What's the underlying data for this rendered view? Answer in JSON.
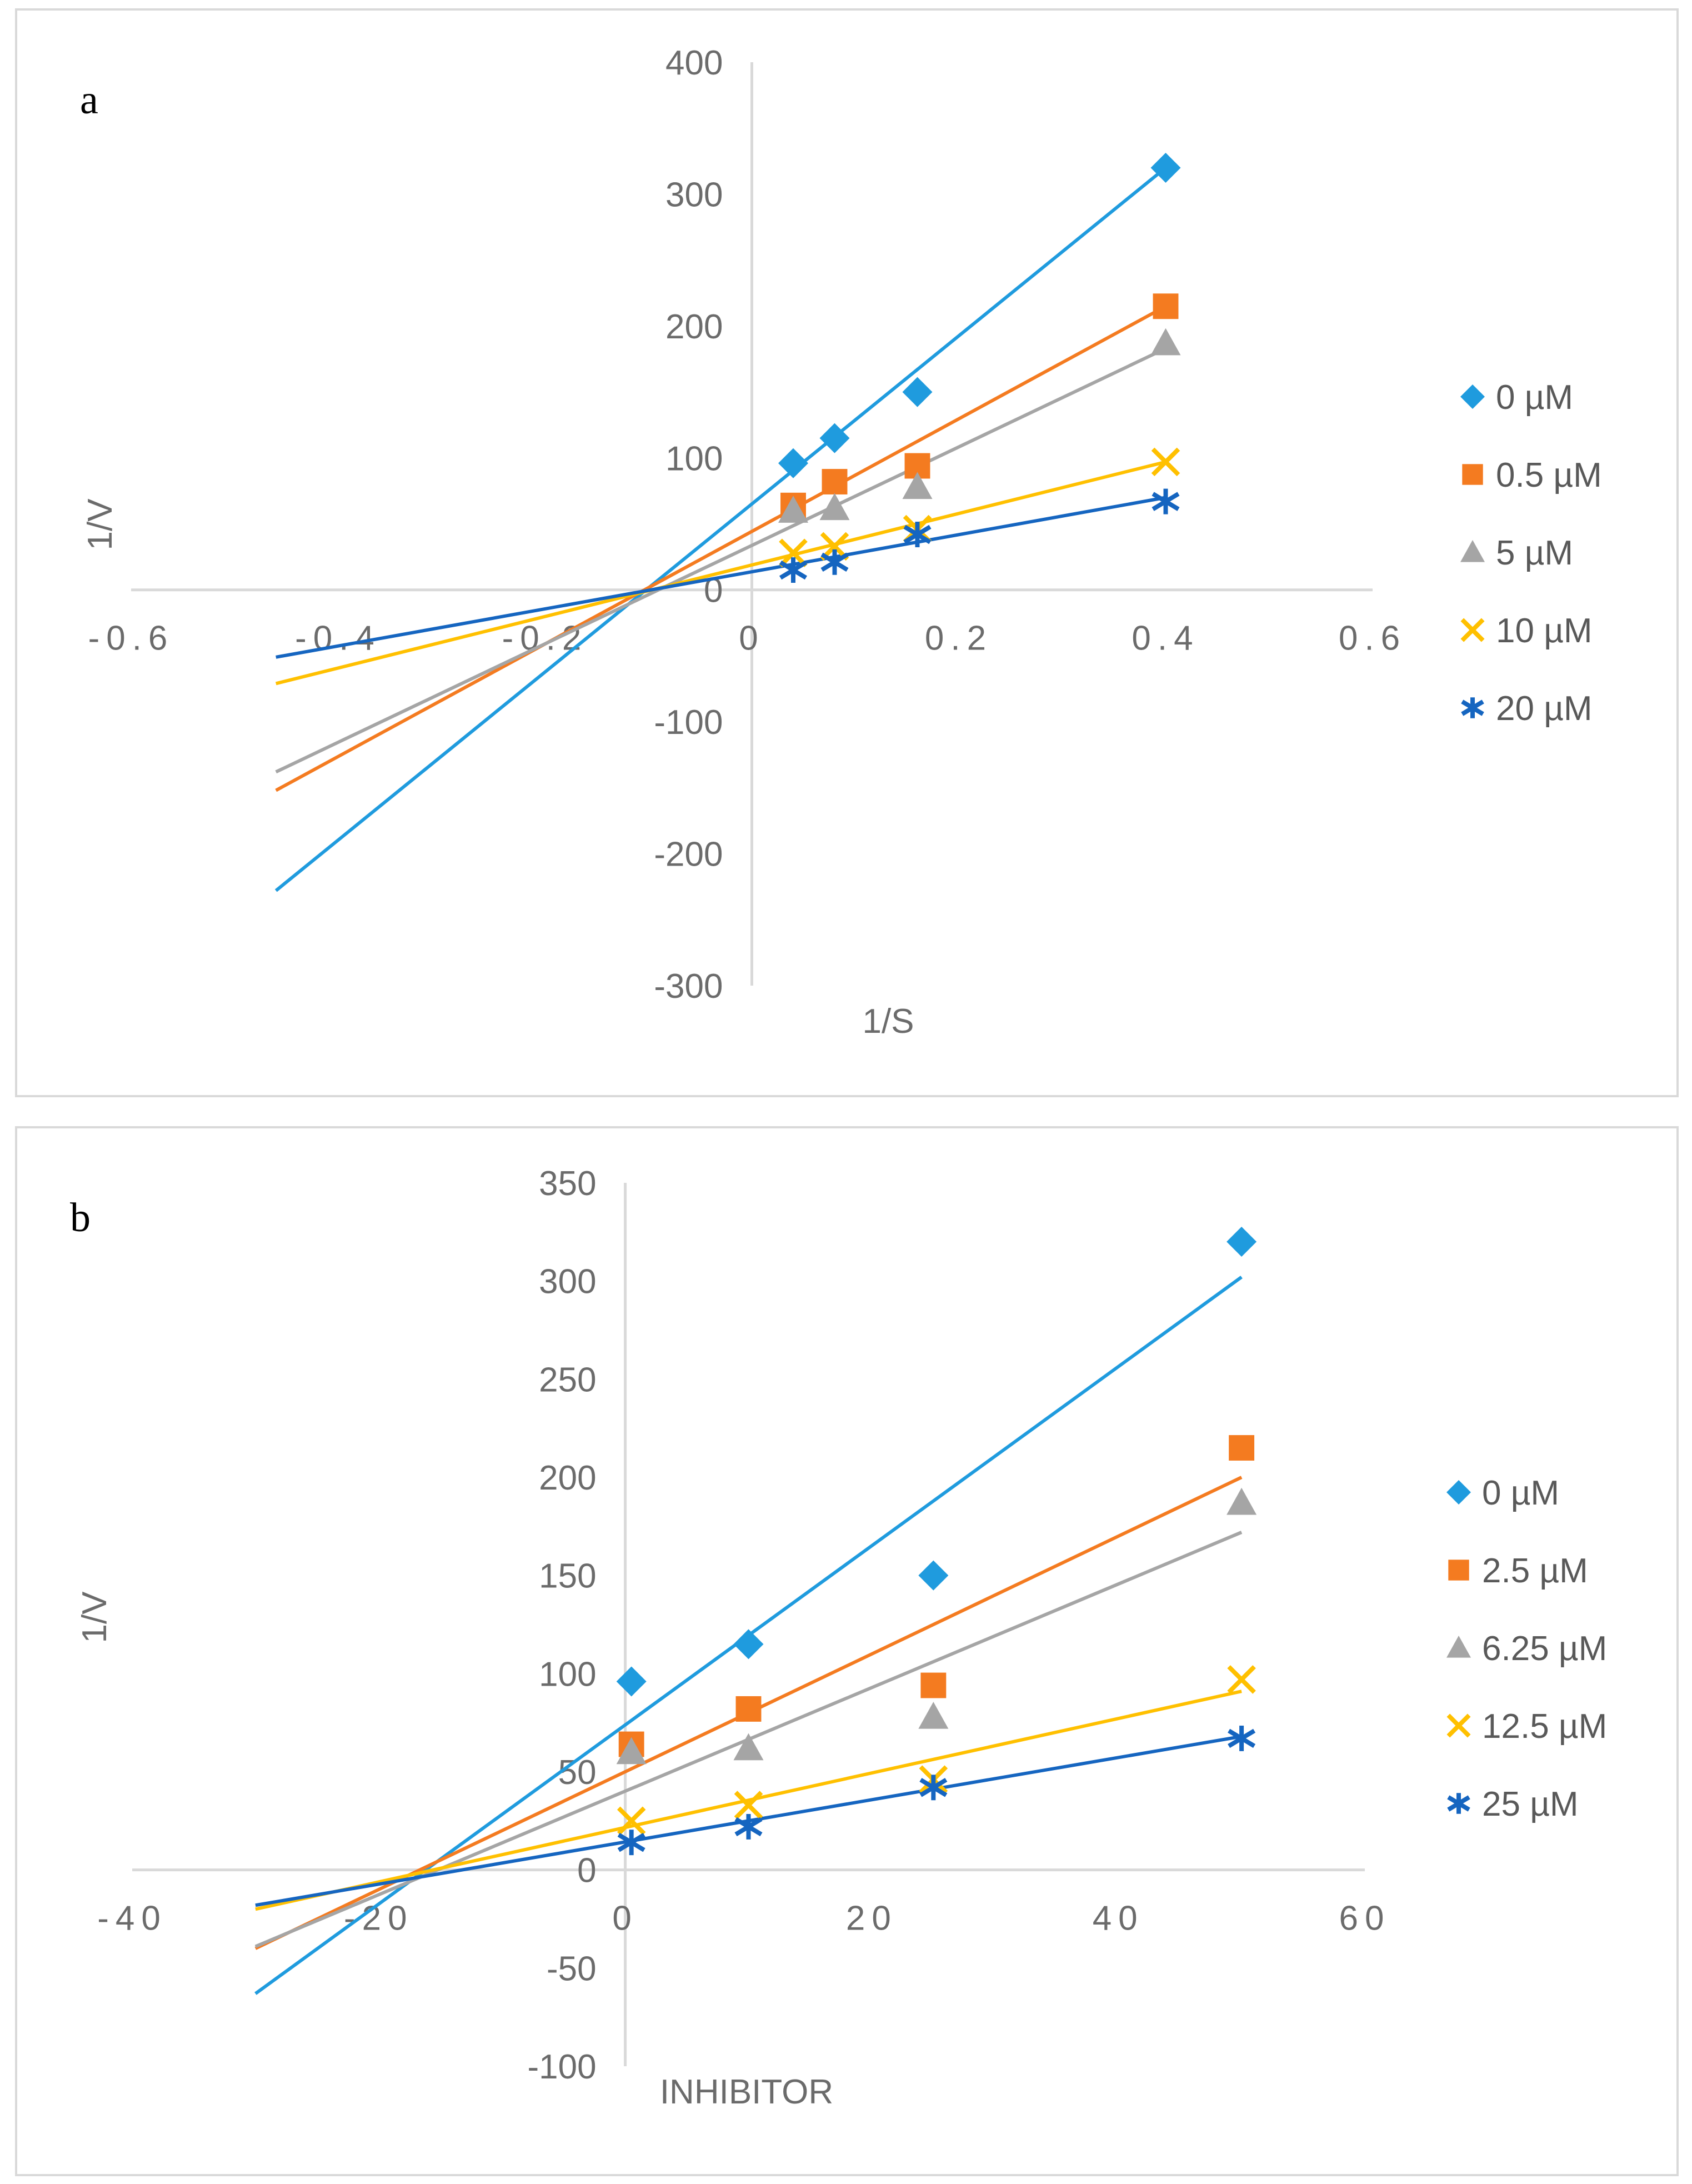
{
  "colors": {
    "axis": "#d9d9d9",
    "border": "#d9d9d9",
    "text": "#6b6b6b",
    "series": [
      "#1f9bde",
      "#f47b20",
      "#a5a5a5",
      "#ffc000",
      "#1565c0"
    ]
  },
  "chart_data": [
    {
      "type": "scatter",
      "panel_label": "a",
      "xlabel": "1/S",
      "ylabel": "1/V",
      "xlim": [
        -0.6,
        0.6
      ],
      "ylim": [
        -300,
        400
      ],
      "x_ticks": [
        -0.6,
        -0.4,
        -0.2,
        0,
        0.2,
        0.4,
        0.6
      ],
      "x_tick_labels": [
        "-0.6",
        "-0.4",
        "-0.2",
        "0",
        "0.2",
        "0.4",
        "0.6"
      ],
      "y_ticks": [
        -300,
        -200,
        -100,
        0,
        100,
        200,
        300,
        400
      ],
      "y_tick_labels": [
        "-300",
        "-200",
        "-100",
        "0",
        "100",
        "200",
        "300",
        "400"
      ],
      "x": [
        0.04,
        0.08,
        0.16,
        0.4
      ],
      "trendline_x_range": [
        -0.46,
        0.4
      ],
      "series": [
        {
          "name": "0 µM",
          "marker": "diamond",
          "values": [
            96,
            115,
            150,
            320
          ],
          "trend": [
            -228,
            320
          ]
        },
        {
          "name": "0.5 µM",
          "marker": "square",
          "values": [
            64,
            82,
            94,
            215
          ],
          "trend": [
            -152,
            215
          ]
        },
        {
          "name": "5 µM",
          "marker": "triangle",
          "values": [
            60,
            62,
            78,
            187
          ],
          "trend": [
            -138,
            183
          ]
        },
        {
          "name": "10 µM",
          "marker": "x",
          "values": [
            28,
            33,
            46,
            97
          ],
          "trend": [
            -71,
            97
          ]
        },
        {
          "name": "20 µM",
          "marker": "star",
          "values": [
            15,
            21,
            42,
            67
          ],
          "trend": [
            -51,
            70
          ]
        }
      ]
    },
    {
      "type": "scatter",
      "panel_label": "b",
      "xlabel": "INHIBITOR",
      "ylabel": "1/V",
      "xlim": [
        -40,
        60
      ],
      "ylim": [
        -100,
        350
      ],
      "x_ticks": [
        -40,
        -20,
        0,
        20,
        40,
        60
      ],
      "x_tick_labels": [
        "-40",
        "-20",
        "0",
        "20",
        "40",
        "60"
      ],
      "y_ticks": [
        -100,
        -50,
        0,
        50,
        100,
        150,
        200,
        250,
        300,
        350
      ],
      "y_tick_labels": [
        "-100",
        "-50",
        "0",
        "50",
        "100",
        "150",
        "200",
        "250",
        "300",
        "350"
      ],
      "x": [
        0.5,
        10,
        25,
        50
      ],
      "trendline_x_range": [
        -30,
        50
      ],
      "series": [
        {
          "name": "0 µM",
          "marker": "diamond",
          "values": [
            96,
            115,
            150,
            320
          ],
          "trend": [
            -63,
            302
          ]
        },
        {
          "name": "2.5 µM",
          "marker": "square",
          "values": [
            64,
            82,
            94,
            215
          ],
          "trend": [
            -40,
            200
          ]
        },
        {
          "name": "6.25 µM",
          "marker": "triangle",
          "values": [
            60,
            62,
            78,
            187
          ],
          "trend": [
            -39,
            172
          ]
        },
        {
          "name": "12.5 µM",
          "marker": "x",
          "values": [
            25,
            33,
            46,
            97
          ],
          "trend": [
            -20,
            91
          ]
        },
        {
          "name": "25 µM",
          "marker": "star",
          "values": [
            14,
            22,
            42,
            67
          ],
          "trend": [
            -18,
            68
          ]
        }
      ]
    }
  ]
}
